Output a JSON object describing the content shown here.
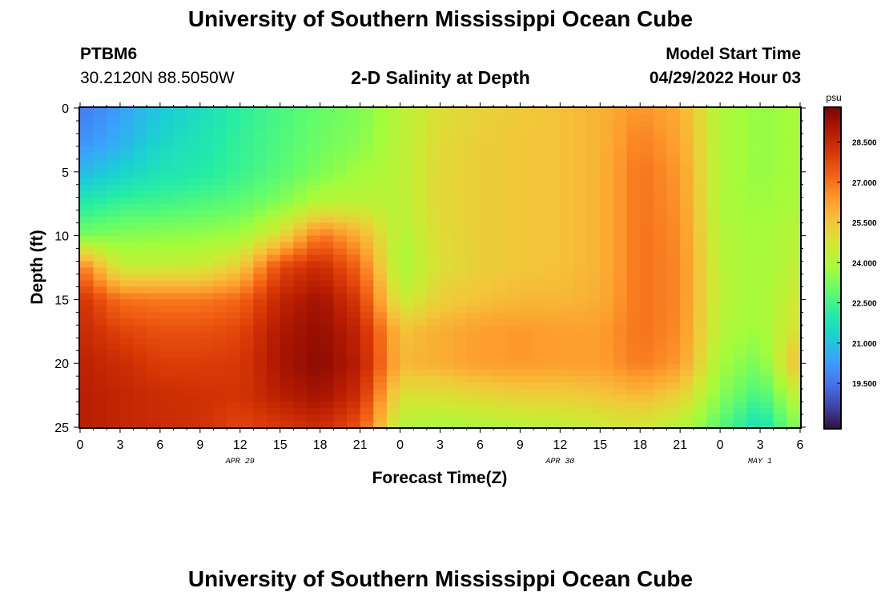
{
  "header": {
    "title": "University of Southern Mississippi Ocean Cube",
    "station_id": "PTBM6",
    "coordinates": "30.2120N  88.5050W",
    "subtitle": "2-D Salinity at Depth",
    "model_start_label": "Model Start Time",
    "model_start_value": "04/29/2022 Hour 03"
  },
  "footer": {
    "title": "University of Southern Mississippi Ocean Cube"
  },
  "colors": {
    "text": "#000000",
    "background": "#ffffff",
    "colormap": [
      "#30123b",
      "#4145ab",
      "#4675ed",
      "#39a2fc",
      "#1bcfd4",
      "#24eca6",
      "#61fc6c",
      "#a4fc3b",
      "#d1e834",
      "#f3c63a",
      "#fe9b2d",
      "#f36315",
      "#d93806",
      "#b11901",
      "#7a0403"
    ]
  },
  "chart_data": {
    "type": "heatmap",
    "title": "2-D Salinity at Depth",
    "xlabel": "Forecast Time(Z)",
    "ylabel": "Depth (ft)",
    "x_unit": "hours from 04/29 00Z",
    "xlim": [
      0,
      54
    ],
    "ylim": [
      0,
      25
    ],
    "y_inverted": true,
    "x_ticks": [
      0,
      3,
      6,
      9,
      12,
      15,
      18,
      21,
      24,
      27,
      30,
      33,
      36,
      39,
      42,
      45,
      48,
      51,
      54
    ],
    "x_tick_labels": [
      "0",
      "3",
      "6",
      "9",
      "12",
      "15",
      "18",
      "21",
      "0",
      "3",
      "6",
      "9",
      "12",
      "15",
      "18",
      "21",
      "0",
      "3",
      "6"
    ],
    "y_ticks": [
      0,
      5,
      10,
      15,
      20,
      25
    ],
    "y_tick_labels": [
      "0",
      "5",
      "10",
      "15",
      "20",
      "25"
    ],
    "date_labels": [
      {
        "x": 12,
        "label": "APR 29"
      },
      {
        "x": 36,
        "label": "APR 30"
      },
      {
        "x": 51,
        "label": "MAY 1"
      }
    ],
    "colorbar": {
      "unit": "psu",
      "min": 17.8,
      "max": 29.8,
      "ticks": [
        19.5,
        21.0,
        22.5,
        24.0,
        25.5,
        27.0,
        28.5
      ],
      "tick_labels": [
        "19.500",
        "21.000",
        "22.500",
        "24.000",
        "25.500",
        "27.000",
        "28.500"
      ]
    },
    "salinity_psu": {
      "hours": [
        0,
        3,
        6,
        9,
        12,
        15,
        18,
        21,
        24,
        27,
        30,
        33,
        36,
        39,
        42,
        45,
        48,
        51,
        54
      ],
      "depths_ft": [
        0,
        2.5,
        5,
        7.5,
        10,
        12.5,
        15,
        17.5,
        20,
        22.5,
        25
      ],
      "values": [
        [
          19.6,
          20.3,
          21.1,
          21.6,
          22.2,
          22.6,
          23.0,
          23.3,
          24.2,
          24.9,
          25.2,
          25.4,
          25.6,
          25.9,
          26.5,
          26.0,
          24.0,
          23.6,
          23.9
        ],
        [
          20.0,
          20.6,
          21.4,
          21.8,
          22.3,
          22.7,
          23.1,
          23.4,
          24.2,
          25.0,
          25.3,
          25.5,
          25.6,
          25.9,
          26.8,
          26.2,
          24.0,
          23.6,
          23.9
        ],
        [
          20.8,
          21.3,
          21.8,
          22.0,
          22.4,
          22.8,
          23.3,
          23.8,
          24.2,
          25.1,
          25.3,
          25.5,
          25.6,
          25.9,
          27.0,
          26.4,
          24.0,
          23.6,
          23.9
        ],
        [
          22.0,
          22.4,
          22.5,
          22.7,
          22.9,
          23.4,
          24.2,
          24.3,
          24.2,
          25.1,
          25.3,
          25.5,
          25.6,
          25.9,
          27.0,
          26.5,
          24.0,
          23.7,
          24.0
        ],
        [
          23.2,
          23.4,
          23.5,
          23.6,
          23.8,
          25.0,
          27.0,
          26.0,
          24.0,
          25.0,
          25.3,
          25.5,
          25.6,
          25.9,
          27.0,
          26.6,
          24.1,
          23.8,
          24.2
        ],
        [
          27.0,
          24.5,
          24.5,
          24.6,
          25.4,
          27.8,
          28.5,
          27.2,
          23.8,
          24.9,
          25.3,
          25.5,
          25.6,
          25.9,
          27.0,
          26.7,
          24.2,
          23.8,
          24.4
        ],
        [
          28.3,
          27.0,
          26.9,
          26.9,
          27.2,
          28.6,
          29.2,
          28.0,
          24.4,
          25.3,
          25.6,
          25.8,
          25.8,
          26.0,
          27.0,
          26.7,
          24.2,
          23.8,
          24.7
        ],
        [
          28.5,
          27.9,
          27.6,
          27.6,
          27.8,
          29.0,
          29.4,
          28.6,
          25.6,
          26.0,
          26.3,
          26.4,
          26.3,
          26.3,
          27.0,
          26.6,
          24.1,
          23.7,
          25.0
        ],
        [
          28.7,
          28.4,
          28.0,
          28.0,
          28.1,
          29.1,
          29.5,
          28.8,
          25.8,
          26.0,
          26.3,
          26.4,
          26.3,
          26.3,
          26.9,
          26.4,
          23.8,
          23.2,
          25.9
        ],
        [
          28.8,
          28.6,
          28.4,
          28.3,
          28.2,
          28.8,
          29.2,
          28.4,
          24.8,
          24.9,
          25.1,
          25.3,
          25.3,
          25.5,
          25.8,
          25.3,
          23.4,
          22.5,
          24.5
        ],
        [
          28.8,
          28.6,
          28.4,
          28.3,
          27.8,
          28.1,
          28.4,
          27.5,
          24.1,
          23.9,
          24.0,
          24.2,
          24.3,
          24.5,
          24.6,
          24.2,
          22.8,
          21.6,
          23.6
        ]
      ]
    }
  }
}
